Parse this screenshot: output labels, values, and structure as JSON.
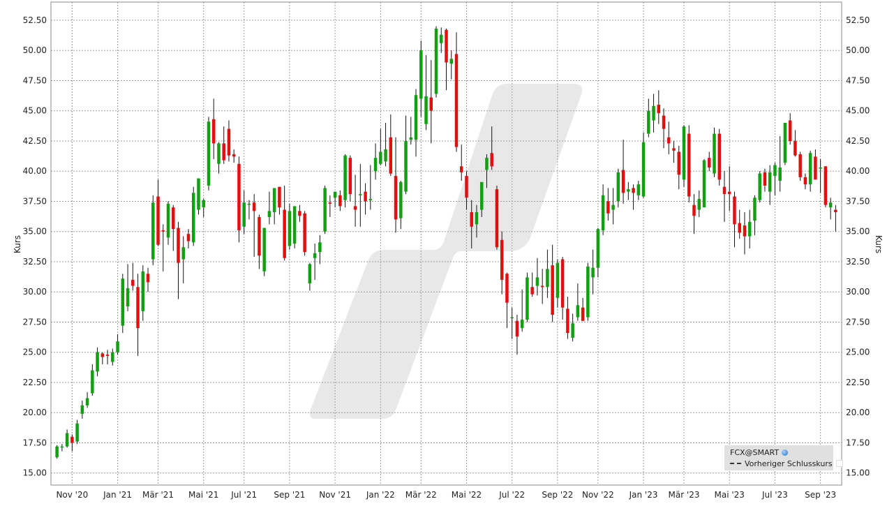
{
  "chart_data": {
    "type": "candlestick",
    "y_axis_label_left": "Kurs",
    "y_axis_label_right": "Kurs",
    "ylim": [
      14.0,
      54.0
    ],
    "y_ticks": [
      "15.00",
      "17.50",
      "20.00",
      "22.50",
      "25.00",
      "27.50",
      "30.00",
      "32.50",
      "35.00",
      "37.50",
      "40.00",
      "42.50",
      "45.00",
      "47.50",
      "50.00",
      "52.50"
    ],
    "x_ticks": [
      {
        "label": "Nov '20",
        "idx": 3
      },
      {
        "label": "Jan '21",
        "idx": 12
      },
      {
        "label": "Mär '21",
        "idx": 20
      },
      {
        "label": "Mai '21",
        "idx": 29
      },
      {
        "label": "Jul '21",
        "idx": 37
      },
      {
        "label": "Sep '21",
        "idx": 46
      },
      {
        "label": "Nov '21",
        "idx": 55
      },
      {
        "label": "Jan '22",
        "idx": 64
      },
      {
        "label": "Mär '22",
        "idx": 72
      },
      {
        "label": "Mai '22",
        "idx": 81
      },
      {
        "label": "Jul '22",
        "idx": 90
      },
      {
        "label": "Sep '22",
        "idx": 99
      },
      {
        "label": "Nov '22",
        "idx": 107
      },
      {
        "label": "Jan '23",
        "idx": 116
      },
      {
        "label": "Mär '23",
        "idx": 124
      },
      {
        "label": "Mai '23",
        "idx": 133
      },
      {
        "label": "Jul '23",
        "idx": 142
      },
      {
        "label": "Sep '23",
        "idx": 151
      }
    ],
    "candles": [
      [
        16.3,
        17.3,
        16.2,
        17.2
      ],
      [
        17.2,
        17.4,
        16.8,
        17.2
      ],
      [
        17.2,
        18.6,
        17.1,
        18.3
      ],
      [
        18.0,
        18.2,
        16.8,
        17.5
      ],
      [
        17.6,
        19.4,
        17.4,
        19.1
      ],
      [
        19.9,
        21.0,
        19.5,
        20.6
      ],
      [
        20.6,
        21.7,
        20.4,
        21.2
      ],
      [
        21.6,
        24.0,
        21.4,
        23.5
      ],
      [
        23.4,
        25.4,
        23.0,
        25.0
      ],
      [
        24.9,
        25.0,
        24.0,
        24.6
      ],
      [
        24.8,
        25.2,
        24.0,
        24.7
      ],
      [
        24.2,
        25.3,
        23.9,
        25.0
      ],
      [
        25.0,
        26.5,
        24.8,
        25.9
      ],
      [
        27.2,
        31.5,
        26.6,
        31.1
      ],
      [
        28.8,
        32.3,
        28.4,
        30.3
      ],
      [
        31.0,
        32.4,
        30.1,
        30.5
      ],
      [
        30.4,
        31.5,
        24.7,
        27.0
      ],
      [
        28.4,
        32.2,
        27.6,
        31.7
      ],
      [
        31.5,
        32.0,
        30.0,
        30.8
      ],
      [
        32.7,
        38.0,
        32.2,
        37.4
      ],
      [
        37.9,
        39.3,
        33.8,
        33.9
      ],
      [
        35.1,
        35.6,
        31.7,
        35.0
      ],
      [
        34.5,
        37.5,
        33.9,
        37.3
      ],
      [
        37.0,
        37.2,
        33.4,
        35.2
      ],
      [
        35.3,
        35.8,
        29.4,
        32.4
      ],
      [
        32.7,
        34.6,
        30.7,
        33.7
      ],
      [
        34.8,
        35.2,
        33.6,
        34.2
      ],
      [
        34.1,
        38.7,
        33.8,
        38.2
      ],
      [
        36.8,
        39.4,
        36.4,
        39.4
      ],
      [
        37.0,
        37.7,
        36.2,
        37.6
      ],
      [
        38.8,
        44.5,
        38.4,
        44.1
      ],
      [
        44.3,
        46.0,
        41.0,
        42.3
      ],
      [
        40.6,
        42.4,
        39.8,
        42.3
      ],
      [
        42.3,
        43.7,
        40.6,
        40.9
      ],
      [
        43.5,
        44.2,
        40.8,
        41.3
      ],
      [
        41.4,
        41.8,
        40.7,
        41.2
      ],
      [
        40.6,
        41.2,
        34.1,
        35.1
      ],
      [
        35.4,
        38.4,
        34.8,
        37.4
      ],
      [
        37.3,
        37.6,
        36.0,
        37.3
      ],
      [
        37.4,
        38.1,
        32.9,
        36.7
      ],
      [
        36.2,
        36.4,
        31.9,
        33.0
      ],
      [
        31.7,
        35.2,
        31.3,
        35.3
      ],
      [
        36.2,
        38.3,
        35.6,
        36.7
      ],
      [
        36.6,
        38.5,
        35.6,
        38.6
      ],
      [
        38.7,
        38.7,
        36.4,
        37.0
      ],
      [
        36.8,
        38.8,
        32.6,
        32.8
      ],
      [
        33.8,
        37.3,
        33.5,
        36.7
      ],
      [
        34.0,
        36.8,
        33.6,
        37.1
      ],
      [
        36.7,
        37.2,
        35.8,
        36.3
      ],
      [
        36.5,
        36.7,
        33.0,
        33.3
      ],
      [
        30.7,
        32.4,
        30.1,
        32.3
      ],
      [
        32.8,
        34.0,
        31.0,
        33.2
      ],
      [
        33.3,
        34.7,
        32.3,
        34.1
      ],
      [
        35.0,
        38.8,
        34.8,
        38.6
      ],
      [
        37.4,
        38.0,
        36.2,
        37.3
      ],
      [
        37.8,
        38.0,
        37.0,
        38.3
      ],
      [
        38.0,
        38.4,
        36.7,
        37.1
      ],
      [
        37.6,
        41.4,
        37.0,
        41.3
      ],
      [
        41.1,
        41.3,
        37.5,
        38.1
      ],
      [
        37.1,
        39.7,
        35.4,
        36.8
      ],
      [
        38.0,
        40.6,
        35.4,
        38.1
      ],
      [
        38.3,
        39.0,
        36.4,
        37.5
      ],
      [
        37.6,
        40.5,
        36.8,
        37.7
      ],
      [
        40.0,
        42.3,
        39.3,
        41.1
      ],
      [
        40.6,
        43.5,
        40.5,
        41.6
      ],
      [
        40.8,
        44.0,
        40.4,
        41.8
      ],
      [
        42.8,
        44.7,
        39.6,
        39.8
      ],
      [
        39.6,
        42.8,
        34.9,
        36.0
      ],
      [
        36.1,
        39.2,
        35.2,
        39.1
      ],
      [
        38.3,
        44.6,
        38.1,
        42.5
      ],
      [
        42.6,
        44.5,
        42.2,
        42.8
      ],
      [
        42.6,
        46.8,
        41.2,
        46.3
      ],
      [
        46.0,
        50.8,
        44.5,
        50.0
      ],
      [
        43.9,
        49.6,
        43.4,
        46.2
      ],
      [
        46.1,
        49.2,
        42.3,
        45.0
      ],
      [
        46.4,
        52.0,
        46.1,
        51.8
      ],
      [
        50.6,
        51.9,
        49.8,
        51.3
      ],
      [
        51.7,
        51.8,
        46.7,
        49.0
      ],
      [
        48.9,
        50.0,
        47.6,
        49.3
      ],
      [
        49.7,
        51.5,
        41.6,
        42.0
      ],
      [
        40.4,
        42.2,
        39.2,
        39.9
      ],
      [
        39.6,
        40.0,
        36.8,
        37.8
      ],
      [
        36.6,
        37.6,
        33.6,
        35.4
      ],
      [
        35.6,
        37.2,
        34.5,
        36.6
      ],
      [
        36.8,
        39.0,
        36.2,
        39.1
      ],
      [
        40.1,
        41.4,
        38.6,
        41.1
      ],
      [
        41.5,
        43.7,
        40.1,
        40.4
      ],
      [
        38.5,
        38.8,
        33.5,
        33.7
      ],
      [
        34.3,
        35.0,
        29.8,
        31.0
      ],
      [
        31.5,
        31.6,
        27.0,
        29.1
      ],
      [
        27.9,
        28.7,
        26.1,
        27.9
      ],
      [
        27.6,
        28.1,
        24.8,
        26.3
      ],
      [
        27.0,
        30.2,
        26.7,
        27.7
      ],
      [
        27.7,
        31.6,
        27.5,
        31.2
      ],
      [
        30.4,
        31.6,
        29.6,
        29.8
      ],
      [
        30.5,
        32.8,
        29.7,
        31.2
      ],
      [
        30.5,
        31.9,
        29.0,
        30.4
      ],
      [
        30.4,
        33.5,
        29.5,
        31.9
      ],
      [
        32.2,
        33.9,
        27.5,
        28.1
      ],
      [
        29.5,
        32.7,
        28.7,
        32.4
      ],
      [
        32.7,
        32.9,
        27.7,
        28.7
      ],
      [
        28.6,
        29.6,
        26.1,
        26.6
      ],
      [
        26.2,
        28.2,
        25.9,
        27.4
      ],
      [
        27.9,
        30.7,
        27.6,
        28.9
      ],
      [
        28.7,
        29.5,
        27.6,
        27.6
      ],
      [
        27.9,
        32.4,
        27.6,
        32.1
      ],
      [
        31.2,
        33.5,
        29.8,
        32.0
      ],
      [
        32.0,
        35.3,
        31.2,
        35.2
      ],
      [
        35.1,
        38.9,
        34.7,
        38.0
      ],
      [
        37.5,
        38.6,
        35.9,
        36.5
      ],
      [
        36.8,
        38.6,
        35.6,
        37.2
      ],
      [
        37.5,
        40.2,
        37.0,
        39.9
      ],
      [
        40.1,
        42.6,
        37.3,
        38.2
      ],
      [
        38.3,
        39.1,
        37.6,
        38.5
      ],
      [
        38.6,
        38.9,
        36.8,
        38.2
      ],
      [
        38.0,
        39.2,
        37.6,
        38.9
      ],
      [
        37.9,
        43.2,
        37.8,
        42.4
      ],
      [
        43.1,
        46.0,
        42.8,
        45.0
      ],
      [
        44.2,
        46.4,
        43.2,
        45.4
      ],
      [
        45.5,
        46.7,
        43.9,
        44.8
      ],
      [
        44.6,
        45.2,
        41.9,
        43.5
      ],
      [
        42.8,
        44.1,
        41.4,
        42.3
      ],
      [
        41.9,
        42.5,
        40.7,
        41.7
      ],
      [
        41.6,
        42.1,
        38.5,
        39.7
      ],
      [
        39.3,
        43.8,
        38.7,
        43.7
      ],
      [
        43.1,
        43.8,
        37.4,
        37.9
      ],
      [
        37.2,
        38.1,
        34.8,
        36.3
      ],
      [
        36.8,
        38.4,
        36.2,
        37.7
      ],
      [
        37.0,
        41.0,
        37.0,
        40.9
      ],
      [
        41.1,
        41.6,
        40.0,
        40.3
      ],
      [
        39.8,
        43.6,
        39.5,
        43.1
      ],
      [
        43.1,
        43.5,
        38.8,
        39.3
      ],
      [
        38.7,
        40.0,
        35.8,
        38.1
      ],
      [
        38.3,
        40.4,
        36.7,
        38.1
      ],
      [
        37.9,
        38.3,
        33.7,
        35.6
      ],
      [
        35.7,
        36.8,
        34.4,
        34.9
      ],
      [
        35.5,
        36.6,
        33.1,
        34.6
      ],
      [
        34.6,
        36.8,
        33.6,
        35.8
      ],
      [
        35.9,
        38.0,
        34.7,
        37.8
      ],
      [
        37.6,
        40.0,
        37.4,
        39.8
      ],
      [
        39.9,
        40.2,
        38.3,
        38.8
      ],
      [
        38.3,
        40.5,
        37.2,
        39.9
      ],
      [
        39.6,
        40.7,
        38.0,
        40.5
      ],
      [
        39.2,
        42.9,
        38.3,
        40.3
      ],
      [
        40.7,
        43.7,
        40.5,
        44.0
      ],
      [
        44.2,
        44.8,
        42.2,
        42.5
      ],
      [
        42.5,
        43.4,
        41.2,
        41.3
      ],
      [
        41.4,
        41.6,
        39.2,
        39.5
      ],
      [
        39.5,
        39.8,
        38.5,
        38.9
      ],
      [
        38.9,
        41.7,
        38.3,
        41.5
      ],
      [
        41.2,
        41.8,
        39.4,
        39.3
      ],
      [
        40.3,
        41.0,
        38.2,
        40.3
      ],
      [
        40.4,
        40.4,
        37.0,
        37.2
      ],
      [
        37.0,
        37.8,
        36.0,
        37.4
      ],
      [
        36.8,
        37.2,
        35.0,
        36.6
      ]
    ],
    "grid": true,
    "up_color": "#11a011",
    "down_color": "#e01010",
    "grid_color": "#9a9a9a",
    "legend": {
      "position": "bottom-right",
      "symbol": "FCX@SMART",
      "prev_close": "Vorheriger Schlusskurs"
    }
  }
}
